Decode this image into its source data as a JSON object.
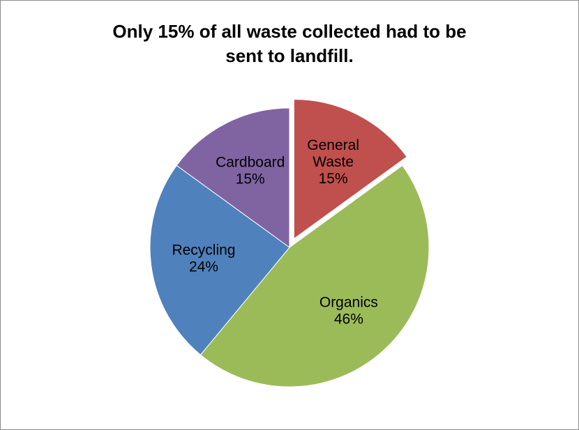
{
  "chart_data": {
    "type": "pie",
    "title": "Only 15% of all waste collected had to be sent to landfill.",
    "title_lines": [
      "Only 15% of all waste collected had to be",
      "sent to landfill."
    ],
    "slices": [
      {
        "name": "General Waste",
        "name_lines": [
          "General",
          "Waste"
        ],
        "value": 15,
        "value_label": "15%",
        "color": "#c0504d",
        "exploded": true
      },
      {
        "name": "Organics",
        "name_lines": [
          "Organics"
        ],
        "value": 46,
        "value_label": "46%",
        "color": "#9bbb59",
        "exploded": false
      },
      {
        "name": "Recycling",
        "name_lines": [
          "Recycling"
        ],
        "value": 24,
        "value_label": "24%",
        "color": "#4f81bd",
        "exploded": false
      },
      {
        "name": "Cardboard",
        "name_lines": [
          "Cardboard"
        ],
        "value": 15,
        "value_label": "15%",
        "color": "#8064a2",
        "exploded": false
      }
    ],
    "legend": "none",
    "start_angle": "12 o'clock, clockwise"
  }
}
